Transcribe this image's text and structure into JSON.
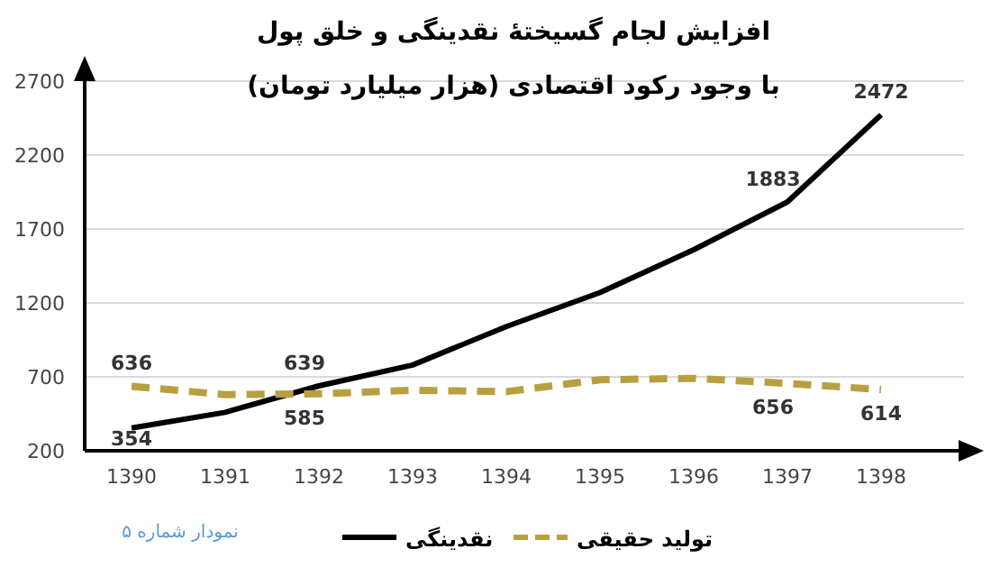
{
  "chart_data": {
    "type": "line",
    "title": "افزایش لجام گسیختهٔ نقدینگی و خلق پول",
    "subtitle": "با وجود رکود اقتصادی (هزار میلیارد تومان)",
    "categories": [
      "1390",
      "1391",
      "1392",
      "1393",
      "1394",
      "1395",
      "1396",
      "1397",
      "1398"
    ],
    "series": [
      {
        "name": "نقدینگی",
        "color": "#000000",
        "line_style": "solid",
        "values": [
          354,
          460,
          639,
          780,
          1040,
          1270,
          1560,
          1883,
          2472
        ],
        "value_labels": [
          "354",
          null,
          "639",
          null,
          null,
          null,
          null,
          "1883",
          "2472"
        ]
      },
      {
        "name": "تولید حقیقی",
        "color": "#b8a040",
        "line_style": "dashed",
        "values": [
          636,
          580,
          585,
          610,
          600,
          680,
          690,
          656,
          614
        ],
        "value_labels": [
          "636",
          null,
          "585",
          null,
          null,
          null,
          null,
          "656",
          "614"
        ]
      }
    ],
    "ylim": [
      200,
      2700
    ],
    "yticks": [
      200,
      700,
      1200,
      1700,
      2200,
      2700
    ],
    "grid": "y",
    "legend": "bottom",
    "marker": "none",
    "annotations": [
      "نمودار شماره ۵"
    ]
  }
}
